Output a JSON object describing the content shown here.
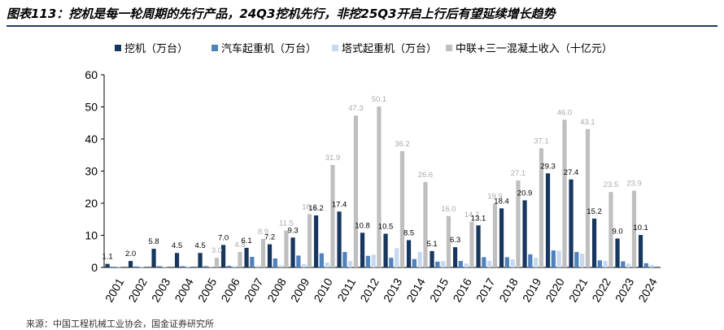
{
  "header": {
    "title": "图表113：挖机是每一轮周期的先行产品，24Q3挖机先行，非挖25Q3开启上行后有望延续增长趋势"
  },
  "footer": {
    "source": "来源：中国工程机械工业协会，国金证券研究所"
  },
  "chart_data": {
    "type": "bar",
    "title": "",
    "xlabel": "",
    "ylabel": "",
    "ylim": [
      0,
      60
    ],
    "yticks": [
      0,
      10,
      20,
      30,
      40,
      50,
      60
    ],
    "grid": false,
    "legend_position": "top",
    "categories": [
      "2001",
      "2002",
      "2003",
      "2004",
      "2005",
      "2006",
      "2007",
      "2008",
      "2009",
      "2010",
      "2011",
      "2012",
      "2013",
      "2014",
      "2015",
      "2016",
      "2017",
      "2018",
      "2019",
      "2020",
      "2021",
      "2022",
      "2023",
      "2024"
    ],
    "series": [
      {
        "name": "挖机（万台）",
        "color": "#17375e",
        "label_style": "dark",
        "values": [
          1.1,
          2.0,
          5.8,
          4.5,
          4.5,
          7.0,
          6.1,
          7.2,
          9.3,
          16.2,
          17.4,
          10.8,
          10.5,
          8.5,
          5.1,
          6.3,
          13.1,
          18.4,
          20.9,
          29.3,
          27.4,
          15.2,
          9.0,
          10.1
        ]
      },
      {
        "name": "汽车起重机（万台）",
        "color": "#4f81bd",
        "label_style": "none",
        "values": [
          0.2,
          0.3,
          0.4,
          0.4,
          0.4,
          0.5,
          3.3,
          2.8,
          3.7,
          4.4,
          4.8,
          3.6,
          3.0,
          2.6,
          1.8,
          2.0,
          3.2,
          3.2,
          4.1,
          5.3,
          4.8,
          2.2,
          1.9,
          1.3
        ]
      },
      {
        "name": "塔式起重机（万台）",
        "color": "#c6d9f1",
        "label_style": "none",
        "values": [
          0.1,
          0.2,
          0.2,
          0.3,
          0.3,
          0.4,
          0.5,
          0.7,
          1.0,
          1.5,
          2.0,
          4.0,
          6.0,
          4.8,
          2.0,
          1.2,
          2.0,
          2.5,
          3.0,
          5.2,
          4.3,
          2.0,
          1.2,
          0.8
        ]
      },
      {
        "name": "中联+三一混凝土收入（十亿元）",
        "color": "#bfbfbf",
        "label_style": "light",
        "labels_from_index": 4,
        "values": [
          null,
          null,
          null,
          null,
          3.0,
          4.8,
          8.9,
          11.5,
          16.6,
          31.9,
          47.3,
          50.1,
          36.2,
          26.6,
          16.0,
          14.2,
          19.9,
          27.1,
          37.1,
          46.0,
          43.1,
          23.5,
          23.9,
          null
        ]
      }
    ]
  }
}
